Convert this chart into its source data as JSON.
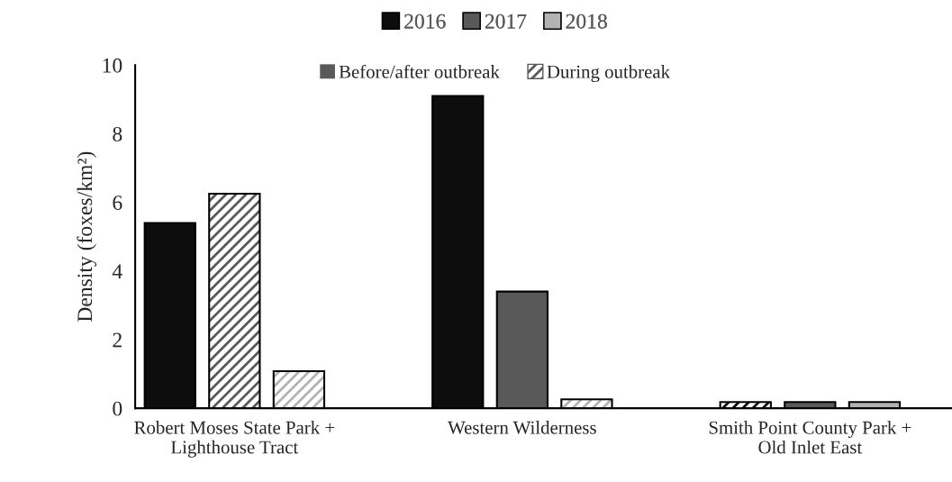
{
  "chart_data": {
    "type": "bar",
    "ylabel": "Density (foxes/km²)",
    "categories": [
      "Robert Moses State Park +\nLighthouse Tract",
      "Western Wilderness",
      "Smith Point County Park +\nOld Inlet East"
    ],
    "series": [
      {
        "name": "2016",
        "color": "#0d0d0d",
        "values": [
          5.4,
          9.1,
          null
        ]
      },
      {
        "name": "2017",
        "color": "#595959",
        "values": [
          null,
          3.4,
          0.18
        ]
      },
      {
        "name": "2018",
        "color": "#b3b3b3",
        "values": [
          null,
          null,
          0.18
        ]
      },
      {
        "color": "#0d0d0d",
        "values": [
          null,
          null,
          0.18
        ]
      },
      {
        "color": "#595959",
        "values": [
          6.25,
          null,
          null
        ]
      },
      {
        "color": "#b3b3b3",
        "values": [
          1.08,
          0.26,
          null
        ]
      }
    ],
    "annotations": [
      "Before/after outbreak",
      "During outbreak"
    ],
    "ylim": [
      0,
      10
    ],
    "yticks": [
      0,
      2,
      4,
      6,
      8,
      10
    ],
    "grid": false,
    "legend": "top"
  }
}
